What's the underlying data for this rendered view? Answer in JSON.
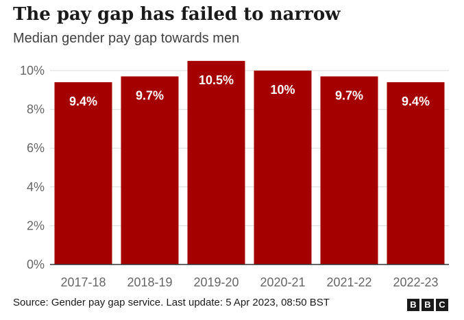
{
  "title": "The pay gap has failed to narrow",
  "subtitle": "Median gender pay gap towards men",
  "source": "Source: Gender pay gap service. Last update: 5 Apr 2023, 08:50 BST",
  "logo_letters": [
    "B",
    "B",
    "C"
  ],
  "colors": {
    "bar": "#a50000",
    "grid": "#dcdcdc",
    "axis": "#333333",
    "tick_text": "#666666",
    "label_text": "#ffffff"
  },
  "chart_data": {
    "type": "bar",
    "categories": [
      "2017-18",
      "2018-19",
      "2019-20",
      "2020-21",
      "2021-22",
      "2022-23"
    ],
    "values": [
      9.4,
      9.7,
      10.5,
      10,
      9.7,
      9.4
    ],
    "data_labels": [
      "9.4%",
      "9.7%",
      "10.5%",
      "10%",
      "9.7%",
      "9.4%"
    ],
    "yticks": [
      0,
      2,
      4,
      6,
      8,
      10
    ],
    "ytick_labels": [
      "0%",
      "2%",
      "4%",
      "6%",
      "8%",
      "10%"
    ],
    "ylim": [
      0,
      10.5
    ],
    "grid": true,
    "legend": "none"
  }
}
